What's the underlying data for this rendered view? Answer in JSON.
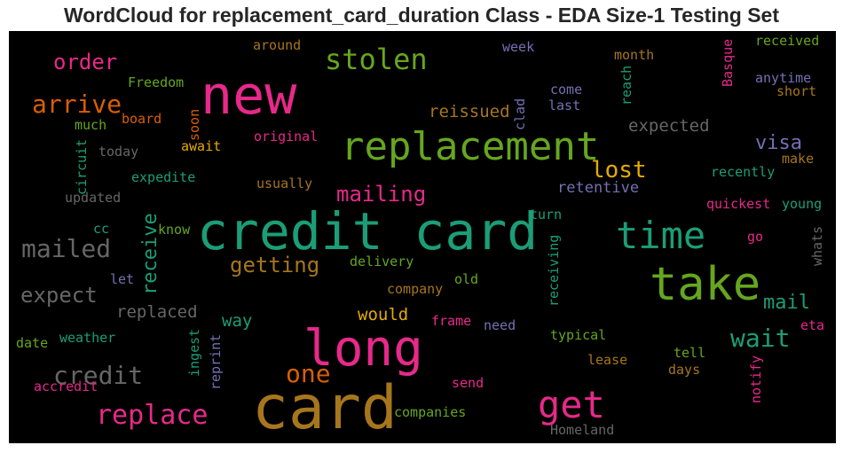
{
  "chart_data": {
    "type": "wordcloud",
    "title": "WordCloud for replacement_card_duration Class - EDA Size-1 Testing Set",
    "background": "#000000",
    "palette": {
      "pink": "#e7298a",
      "green": "#1b9e77",
      "lime": "#66a61e",
      "gold": "#a6761d",
      "orange": "#d95f02",
      "purple": "#7570b3",
      "gray": "#666666",
      "yellow": "#e6ab02"
    },
    "words": [
      {
        "text": "credit card",
        "color": "green"
      },
      {
        "text": "card",
        "color": "gold"
      },
      {
        "text": "long",
        "color": "pink"
      },
      {
        "text": "new",
        "color": "pink"
      },
      {
        "text": "replacement",
        "color": "lime"
      },
      {
        "text": "take",
        "color": "lime"
      },
      {
        "text": "time",
        "color": "green"
      },
      {
        "text": "get",
        "color": "pink"
      },
      {
        "text": "stolen",
        "color": "lime"
      },
      {
        "text": "replace",
        "color": "pink"
      },
      {
        "text": "mailed",
        "color": "gray"
      },
      {
        "text": "arrive",
        "color": "orange"
      },
      {
        "text": "credit",
        "color": "gray"
      },
      {
        "text": "wait",
        "color": "green"
      },
      {
        "text": "one",
        "color": "orange"
      },
      {
        "text": "lost",
        "color": "yellow"
      },
      {
        "text": "expect",
        "color": "gray"
      },
      {
        "text": "mailing",
        "color": "pink"
      },
      {
        "text": "getting",
        "color": "gold"
      },
      {
        "text": "receive",
        "color": "green"
      },
      {
        "text": "order",
        "color": "pink"
      },
      {
        "text": "mail",
        "color": "green"
      },
      {
        "text": "visa",
        "color": "purple"
      },
      {
        "text": "reissued",
        "color": "gold"
      },
      {
        "text": "expected",
        "color": "gray"
      },
      {
        "text": "replaced",
        "color": "gray"
      },
      {
        "text": "retentive",
        "color": "purple"
      },
      {
        "text": "would",
        "color": "yellow"
      },
      {
        "text": "way",
        "color": "green"
      },
      {
        "text": "Freedom",
        "color": "lime"
      },
      {
        "text": "around",
        "color": "gold"
      },
      {
        "text": "week",
        "color": "purple"
      },
      {
        "text": "received",
        "color": "lime"
      },
      {
        "text": "Basque",
        "color": "pink"
      },
      {
        "text": "month",
        "color": "gold"
      },
      {
        "text": "reach",
        "color": "green"
      },
      {
        "text": "anytime",
        "color": "purple"
      },
      {
        "text": "short",
        "color": "gold"
      },
      {
        "text": "come",
        "color": "purple"
      },
      {
        "text": "last",
        "color": "purple"
      },
      {
        "text": "clad",
        "color": "purple"
      },
      {
        "text": "board",
        "color": "orange"
      },
      {
        "text": "much",
        "color": "lime"
      },
      {
        "text": "soon",
        "color": "orange"
      },
      {
        "text": "await",
        "color": "yellow"
      },
      {
        "text": "original",
        "color": "pink"
      },
      {
        "text": "today",
        "color": "gray"
      },
      {
        "text": "circuit",
        "color": "green"
      },
      {
        "text": "expedite",
        "color": "green"
      },
      {
        "text": "usually",
        "color": "gold"
      },
      {
        "text": "updated",
        "color": "gray"
      },
      {
        "text": "recently",
        "color": "green"
      },
      {
        "text": "make",
        "color": "gold"
      },
      {
        "text": "quickest",
        "color": "pink"
      },
      {
        "text": "young",
        "color": "green"
      },
      {
        "text": "turn",
        "color": "green"
      },
      {
        "text": "cc",
        "color": "green"
      },
      {
        "text": "know",
        "color": "lime"
      },
      {
        "text": "go",
        "color": "pink"
      },
      {
        "text": "whats",
        "color": "gray"
      },
      {
        "text": "delivery",
        "color": "lime"
      },
      {
        "text": "receiving",
        "color": "green"
      },
      {
        "text": "let",
        "color": "purple"
      },
      {
        "text": "old",
        "color": "lime"
      },
      {
        "text": "company",
        "color": "gold"
      },
      {
        "text": "frame",
        "color": "pink"
      },
      {
        "text": "need",
        "color": "purple"
      },
      {
        "text": "eta",
        "color": "pink"
      },
      {
        "text": "date",
        "color": "lime"
      },
      {
        "text": "weather",
        "color": "green"
      },
      {
        "text": "ingest",
        "color": "green"
      },
      {
        "text": "reprint",
        "color": "purple"
      },
      {
        "text": "typical",
        "color": "lime"
      },
      {
        "text": "lease",
        "color": "gold"
      },
      {
        "text": "tell",
        "color": "lime"
      },
      {
        "text": "days",
        "color": "gold"
      },
      {
        "text": "notify",
        "color": "pink"
      },
      {
        "text": "accredit",
        "color": "pink"
      },
      {
        "text": "send",
        "color": "pink"
      },
      {
        "text": "companies",
        "color": "lime"
      },
      {
        "text": "Homeland",
        "color": "gray"
      }
    ]
  }
}
